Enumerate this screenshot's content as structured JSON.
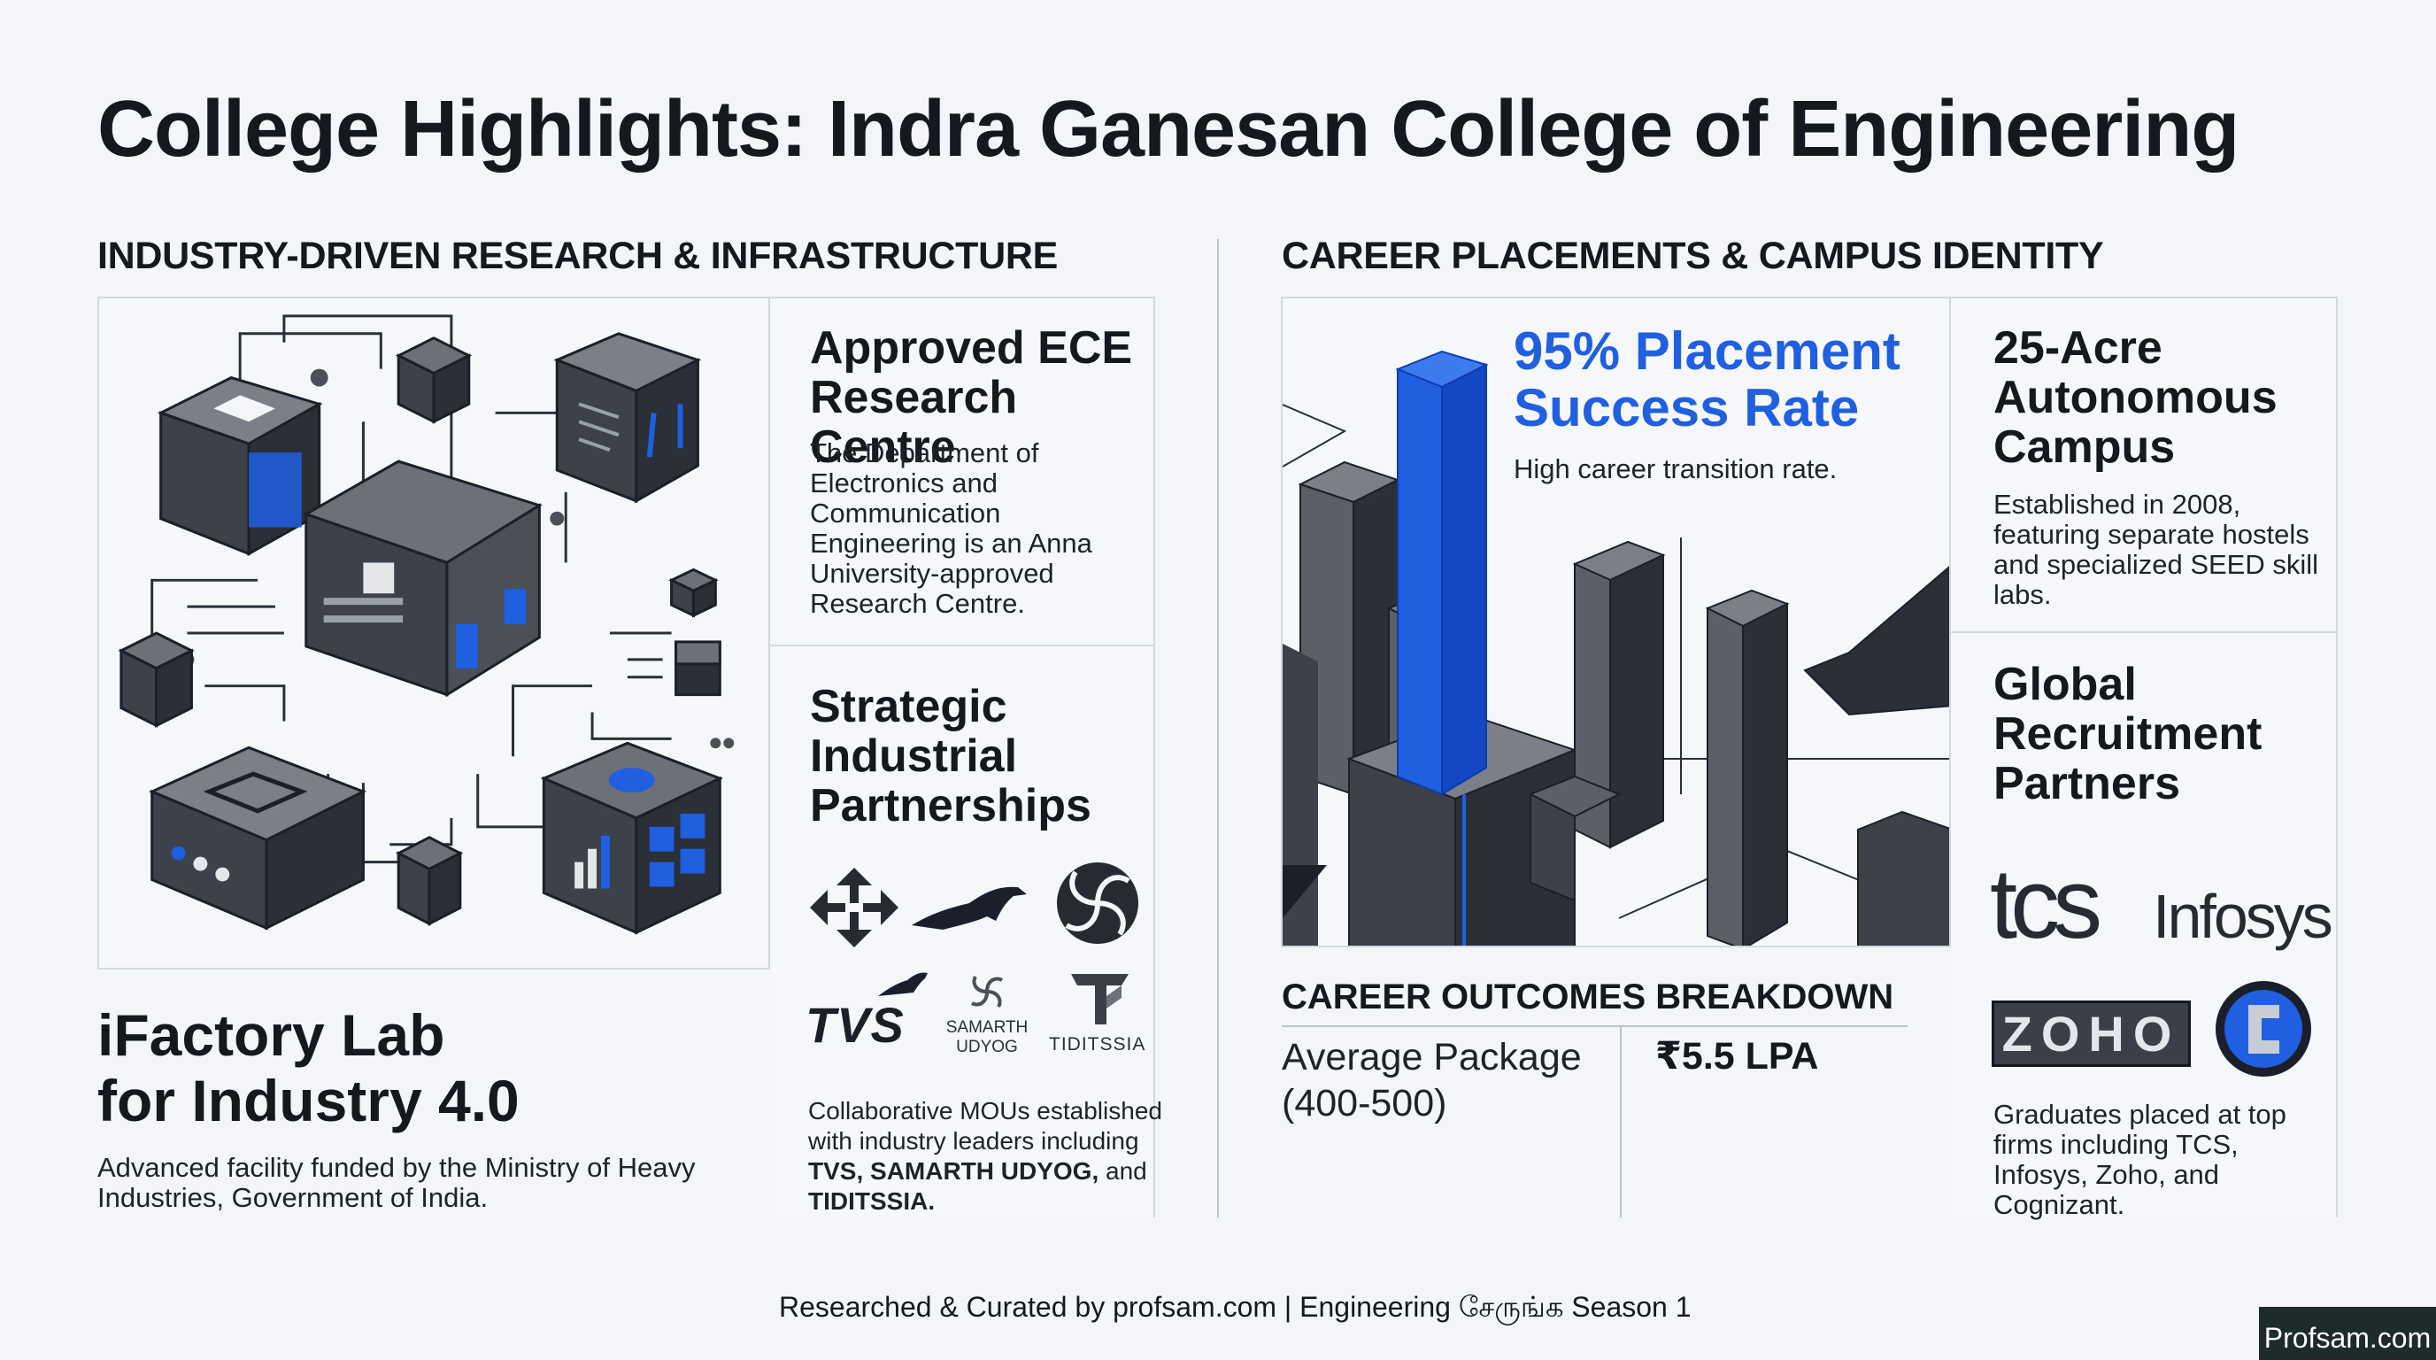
{
  "title": "College Highlights: Indra Ganesan College of Engineering",
  "left_section": {
    "heading": "INDUSTRY-DRIVEN RESEARCH & INFRASTRUCTURE",
    "ifactory": {
      "title_line1": "iFactory Lab",
      "title_line2": "for Industry 4.0",
      "desc": "Advanced facility funded by the Ministry of Heavy Industries, Government of India."
    },
    "ece": {
      "title": "Approved ECE Research Centre",
      "desc": "The Department of Electronics and Communication Engineering is an Anna University-approved Research Centre."
    },
    "partnerships": {
      "title": "Strategic Industrial Partnerships",
      "logos": [
        "TVS",
        "SAMARTH",
        "UDYOG",
        "TIDITSSIA"
      ],
      "desc_prefix": "Collaborative MOUs established with industry leaders including ",
      "desc_bold1": "TVS, SAMARTH UDYOG,",
      "desc_mid": " and ",
      "desc_bold2": "TIDITSSIA."
    }
  },
  "right_section": {
    "heading": "CAREER PLACEMENTS & CAMPUS IDENTITY",
    "placement": {
      "title": "95% Placement Success Rate",
      "desc": "High career transition rate."
    },
    "outcomes": {
      "heading": "CAREER OUTCOMES BREAKDOWN",
      "label": "Average Package (400-500)",
      "value": "₹5.5 LPA"
    },
    "campus": {
      "title": "25-Acre Autonomous Campus",
      "desc": "Established in 2008, featuring separate hostels and specialized SEED skill labs."
    },
    "recruiters": {
      "title": "Global Recruitment Partners",
      "logos": [
        "tcs",
        "Infosys",
        "ZOHO"
      ],
      "desc": "Graduates placed at top firms including TCS, Infosys, Zoho, and Cognizant."
    }
  },
  "footer": "Researched & Curated by profsam.com | Engineering சேருங்க Season 1",
  "brand": "Profsam.com",
  "colors": {
    "accent_blue": "#1f5fe0",
    "dark": "#2a2f38",
    "mid_gray": "#6b7079"
  }
}
